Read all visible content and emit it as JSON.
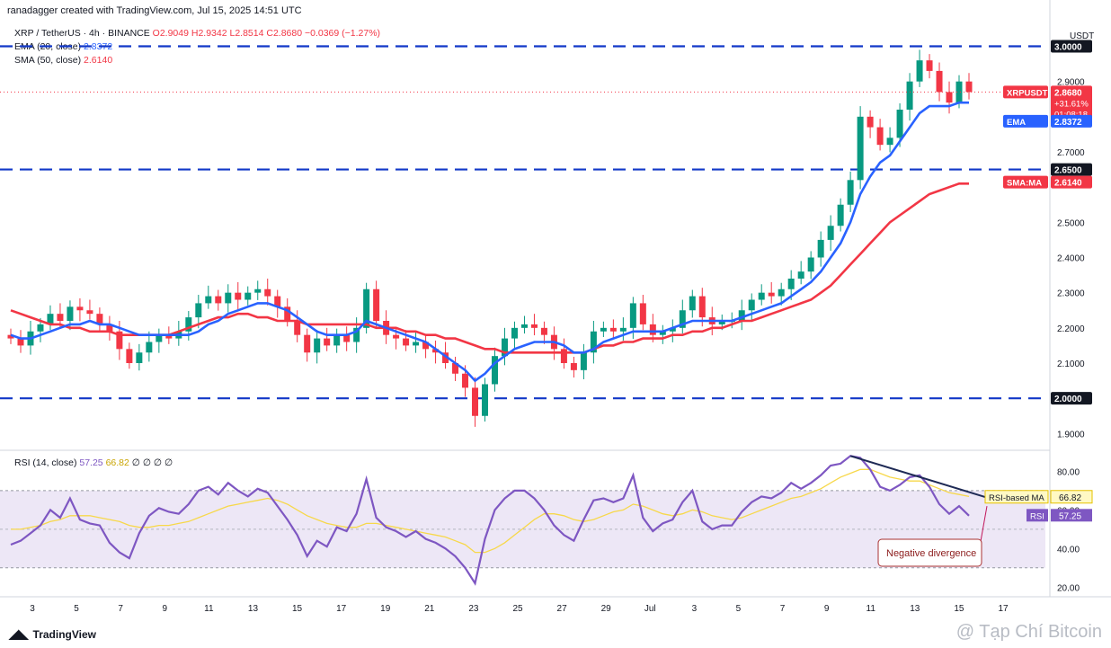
{
  "header": {
    "credit": "ranadagger created with TradingView.com, Jul 15, 2025 14:51 UTC",
    "symbol": "XRP / TetherUS · 4h · BINANCE",
    "ohlc": "O2.9049 H2.9342 L2.8514 C2.8680 −0.0369 (−1.27%)",
    "ema_label": "EMA (20, close)",
    "ema_value": "2.8372",
    "sma_label": "SMA (50, close)",
    "sma_value": "2.6140",
    "rsi_label": "RSI (14, close)",
    "rsi_value": "57.25",
    "rsi_ma_value": "66.82",
    "rsi_extra": "∅ ∅ ∅ ∅"
  },
  "colors": {
    "up": "#089981",
    "down": "#f23645",
    "ema": "#2962ff",
    "sma": "#f23645",
    "rsi": "#7e57c2",
    "rsi_ma": "#f7d84a",
    "level": "#1238c8"
  },
  "footer": {
    "brand": "TradingView",
    "watermark": "@ Tạp Chí Bitcoin"
  },
  "chart_data": [
    {
      "type": "candlestick",
      "title": "XRP / TetherUS · 4h · BINANCE",
      "currency": "USDT",
      "ylim": [
        1.86,
        3.06
      ],
      "y_ticks": [
        "1.9000",
        "2.1000",
        "2.2000",
        "2.3000",
        "2.4000",
        "2.5000",
        "2.7000",
        "2.9000"
      ],
      "x_ticks": [
        "3",
        "5",
        "7",
        "9",
        "11",
        "13",
        "15",
        "17",
        "19",
        "21",
        "23",
        "25",
        "27",
        "29",
        "Jul",
        "3",
        "5",
        "7",
        "9",
        "11",
        "13",
        "15",
        "17"
      ],
      "levels": [
        {
          "value": 3.0,
          "label": "3.0000"
        },
        {
          "value": 2.65,
          "label": "2.6500"
        },
        {
          "value": 2.0,
          "label": "2.0000"
        }
      ],
      "price_tag": {
        "label": "XRPUSDT",
        "value": "2.8680",
        "change": "+31.61%",
        "countdown": "01:08:18"
      },
      "ema_tag": {
        "label": "EMA",
        "value": "2.8372"
      },
      "sma_tag": {
        "label": "SMA:MA",
        "value": "2.6140"
      },
      "close": [
        2.17,
        2.15,
        2.19,
        2.21,
        2.24,
        2.22,
        2.26,
        2.25,
        2.24,
        2.21,
        2.19,
        2.14,
        2.1,
        2.13,
        2.16,
        2.18,
        2.17,
        2.19,
        2.23,
        2.27,
        2.29,
        2.27,
        2.3,
        2.28,
        2.3,
        2.31,
        2.29,
        2.26,
        2.22,
        2.18,
        2.13,
        2.17,
        2.15,
        2.18,
        2.16,
        2.2,
        2.31,
        2.22,
        2.18,
        2.17,
        2.15,
        2.16,
        2.14,
        2.13,
        2.1,
        2.07,
        2.03,
        1.95,
        2.04,
        2.12,
        2.17,
        2.2,
        2.21,
        2.2,
        2.18,
        2.14,
        2.1,
        2.08,
        2.13,
        2.19,
        2.2,
        2.19,
        2.2,
        2.27,
        2.21,
        2.18,
        2.19,
        2.2,
        2.25,
        2.29,
        2.23,
        2.21,
        2.22,
        2.22,
        2.25,
        2.28,
        2.3,
        2.29,
        2.31,
        2.34,
        2.36,
        2.4,
        2.45,
        2.49,
        2.55,
        2.62,
        2.8,
        2.77,
        2.72,
        2.74,
        2.82,
        2.9,
        2.96,
        2.93,
        2.87,
        2.84,
        2.9,
        2.87
      ],
      "ema": [
        2.18,
        2.17,
        2.17,
        2.18,
        2.19,
        2.2,
        2.21,
        2.21,
        2.22,
        2.21,
        2.21,
        2.2,
        2.19,
        2.18,
        2.18,
        2.18,
        2.18,
        2.18,
        2.18,
        2.19,
        2.21,
        2.22,
        2.24,
        2.25,
        2.26,
        2.27,
        2.27,
        2.26,
        2.25,
        2.23,
        2.21,
        2.19,
        2.18,
        2.18,
        2.18,
        2.19,
        2.22,
        2.21,
        2.2,
        2.19,
        2.18,
        2.17,
        2.16,
        2.14,
        2.12,
        2.1,
        2.08,
        2.05,
        2.07,
        2.1,
        2.12,
        2.14,
        2.15,
        2.16,
        2.16,
        2.16,
        2.15,
        2.13,
        2.13,
        2.14,
        2.16,
        2.17,
        2.18,
        2.19,
        2.19,
        2.19,
        2.19,
        2.2,
        2.21,
        2.22,
        2.22,
        2.22,
        2.22,
        2.22,
        2.23,
        2.24,
        2.25,
        2.26,
        2.27,
        2.29,
        2.31,
        2.33,
        2.36,
        2.4,
        2.44,
        2.5,
        2.58,
        2.63,
        2.67,
        2.69,
        2.73,
        2.77,
        2.81,
        2.83,
        2.83,
        2.83,
        2.84,
        2.84
      ],
      "sma": [
        2.25,
        2.24,
        2.23,
        2.22,
        2.21,
        2.21,
        2.2,
        2.2,
        2.19,
        2.19,
        2.19,
        2.18,
        2.18,
        2.18,
        2.18,
        2.18,
        2.18,
        2.19,
        2.2,
        2.21,
        2.22,
        2.23,
        2.23,
        2.24,
        2.24,
        2.23,
        2.23,
        2.22,
        2.22,
        2.22,
        2.21,
        2.21,
        2.21,
        2.21,
        2.21,
        2.21,
        2.21,
        2.2,
        2.2,
        2.2,
        2.19,
        2.19,
        2.18,
        2.18,
        2.17,
        2.17,
        2.16,
        2.15,
        2.14,
        2.14,
        2.13,
        2.13,
        2.13,
        2.13,
        2.13,
        2.13,
        2.13,
        2.13,
        2.13,
        2.14,
        2.15,
        2.15,
        2.16,
        2.16,
        2.17,
        2.17,
        2.17,
        2.18,
        2.18,
        2.19,
        2.19,
        2.2,
        2.2,
        2.21,
        2.22,
        2.22,
        2.23,
        2.24,
        2.25,
        2.26,
        2.27,
        2.28,
        2.3,
        2.32,
        2.35,
        2.38,
        2.41,
        2.44,
        2.47,
        2.5,
        2.52,
        2.54,
        2.56,
        2.58,
        2.59,
        2.6,
        2.61,
        2.61
      ]
    },
    {
      "type": "line",
      "title": "RSI (14, close)",
      "ylim": [
        15,
        90
      ],
      "y_ticks": [
        "20.00",
        "40.00",
        "60.00",
        "80.00"
      ],
      "band": [
        30,
        70
      ],
      "series": [
        {
          "name": "RSI",
          "values": [
            42,
            44,
            48,
            52,
            60,
            56,
            66,
            55,
            53,
            52,
            43,
            38,
            35,
            48,
            57,
            61,
            59,
            58,
            63,
            70,
            72,
            68,
            74,
            70,
            67,
            71,
            69,
            62,
            55,
            47,
            36,
            44,
            41,
            51,
            49,
            58,
            76,
            56,
            51,
            49,
            46,
            49,
            45,
            43,
            40,
            36,
            30,
            22,
            45,
            60,
            66,
            70,
            70,
            66,
            60,
            52,
            47,
            44,
            55,
            65,
            66,
            64,
            66,
            78,
            56,
            49,
            53,
            55,
            64,
            70,
            54,
            50,
            52,
            52,
            59,
            64,
            67,
            66,
            69,
            74,
            71,
            74,
            78,
            83,
            84,
            88,
            87,
            81,
            72,
            70,
            73,
            77,
            78,
            72,
            63,
            58,
            62,
            57
          ]
        },
        {
          "name": "RSI-based MA",
          "values": [
            50,
            50,
            51,
            52,
            54,
            55,
            57,
            57,
            57,
            56,
            55,
            54,
            52,
            51,
            51,
            52,
            52,
            53,
            54,
            56,
            58,
            60,
            62,
            63,
            64,
            65,
            66,
            65,
            63,
            60,
            57,
            55,
            53,
            52,
            51,
            51,
            53,
            53,
            52,
            51,
            50,
            49,
            48,
            47,
            46,
            44,
            42,
            38,
            38,
            40,
            43,
            47,
            51,
            55,
            58,
            58,
            57,
            55,
            54,
            55,
            57,
            59,
            60,
            63,
            62,
            60,
            58,
            57,
            58,
            60,
            59,
            57,
            56,
            55,
            56,
            58,
            60,
            62,
            64,
            66,
            67,
            69,
            71,
            74,
            77,
            79,
            81,
            81,
            79,
            77,
            76,
            75,
            75,
            73,
            71,
            69,
            68,
            67
          ]
        }
      ],
      "tags": [
        {
          "label": "RSI-based MA",
          "value": "66.82"
        },
        {
          "label": "RSI",
          "value": "57.25"
        }
      ],
      "annotations": [
        {
          "text": "Negative divergence"
        }
      ]
    }
  ]
}
